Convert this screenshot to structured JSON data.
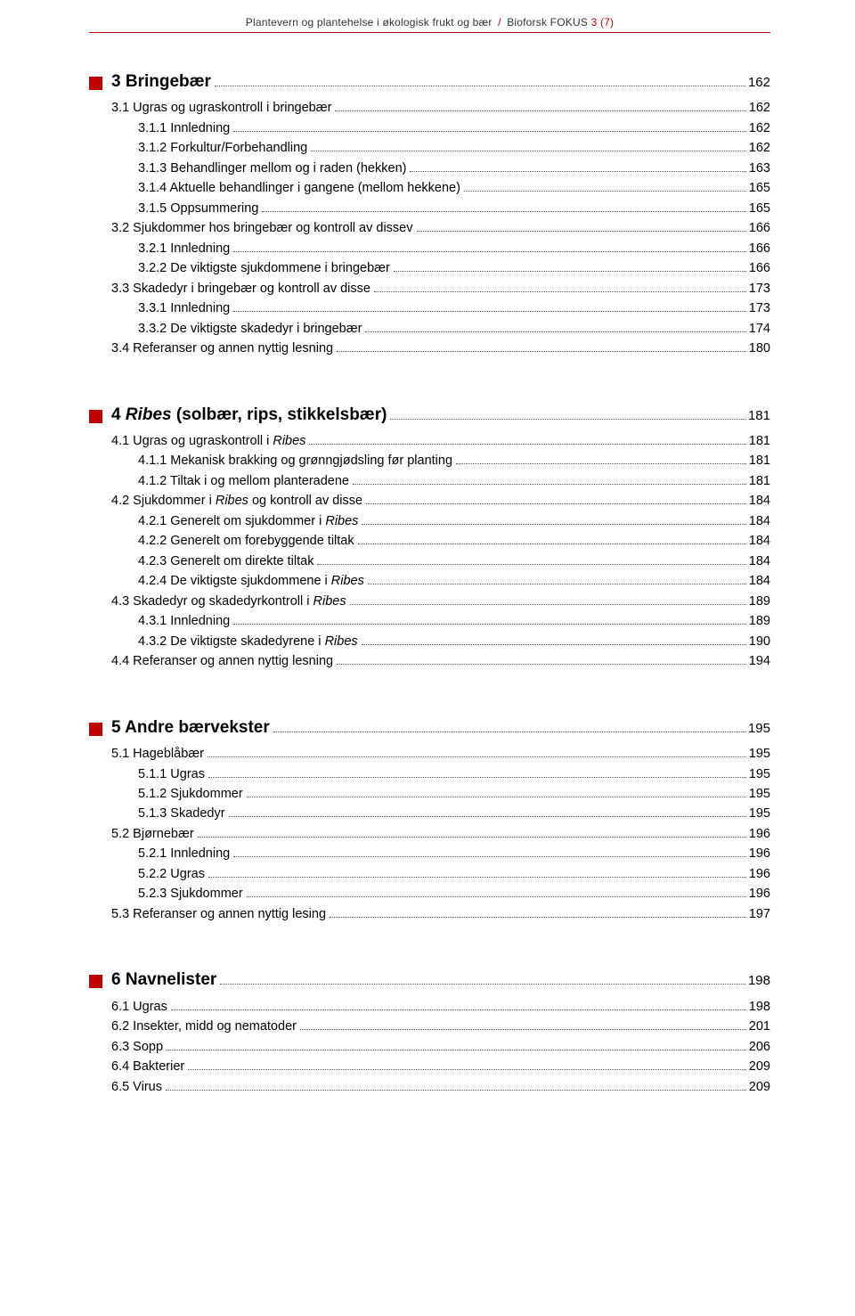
{
  "header": {
    "left": "Plantevern og plantehelse i økologisk frukt og bær",
    "right_prefix": "Bioforsk FOKUS ",
    "issue": "3 (7)"
  },
  "sections": [
    {
      "title_parts": [
        {
          "text": "3 Bringebær"
        }
      ],
      "page": "162",
      "entries": [
        {
          "level": 0,
          "parts": [
            {
              "text": "3.1 Ugras og ugraskontroll i bringebær"
            }
          ],
          "page": "162"
        },
        {
          "level": 1,
          "parts": [
            {
              "text": "3.1.1 Innledning"
            }
          ],
          "page": "162"
        },
        {
          "level": 1,
          "parts": [
            {
              "text": "3.1.2 Forkultur/Forbehandling"
            }
          ],
          "page": "162"
        },
        {
          "level": 1,
          "parts": [
            {
              "text": "3.1.3 Behandlinger mellom og i raden (hekken)"
            }
          ],
          "page": "163"
        },
        {
          "level": 1,
          "parts": [
            {
              "text": "3.1.4 Aktuelle behandlinger i gangene (mellom hekkene)"
            }
          ],
          "page": "165"
        },
        {
          "level": 1,
          "parts": [
            {
              "text": "3.1.5 Oppsummering"
            }
          ],
          "page": "165"
        },
        {
          "level": 0,
          "parts": [
            {
              "text": "3.2 Sjukdommer hos bringebær og kontroll av dissev"
            }
          ],
          "page": "166"
        },
        {
          "level": 1,
          "parts": [
            {
              "text": "3.2.1 Innledning"
            }
          ],
          "page": "166"
        },
        {
          "level": 1,
          "parts": [
            {
              "text": "3.2.2 De viktigste sjukdommene i bringebær"
            }
          ],
          "page": "166"
        },
        {
          "level": 0,
          "parts": [
            {
              "text": "3.3 Skadedyr i bringebær og kontroll av disse"
            }
          ],
          "page": "173"
        },
        {
          "level": 1,
          "parts": [
            {
              "text": "3.3.1 Innledning"
            }
          ],
          "page": "173"
        },
        {
          "level": 1,
          "parts": [
            {
              "text": "3.3.2 De viktigste skadedyr i bringebær"
            }
          ],
          "page": "174"
        },
        {
          "level": 0,
          "parts": [
            {
              "text": "3.4 Referanser og annen nyttig lesning"
            }
          ],
          "page": "180"
        }
      ]
    },
    {
      "title_parts": [
        {
          "text": "4 "
        },
        {
          "text": "Ribes",
          "italic": true
        },
        {
          "text": " (solbær, rips, stikkelsbær)"
        }
      ],
      "page": "181",
      "entries": [
        {
          "level": 0,
          "parts": [
            {
              "text": "4.1 Ugras og ugraskontroll i "
            },
            {
              "text": "Ribes",
              "italic": true
            }
          ],
          "page": "181"
        },
        {
          "level": 1,
          "parts": [
            {
              "text": "4.1.1 Mekanisk brakking og grønngjødsling før planting"
            }
          ],
          "page": "181"
        },
        {
          "level": 1,
          "parts": [
            {
              "text": "4.1.2 Tiltak i og mellom planteradene "
            }
          ],
          "page": "181"
        },
        {
          "level": 0,
          "parts": [
            {
              "text": "4.2 Sjukdommer i "
            },
            {
              "text": "Ribes",
              "italic": true
            },
            {
              "text": " og kontroll av disse"
            }
          ],
          "page": "184"
        },
        {
          "level": 1,
          "parts": [
            {
              "text": "4.2.1 Generelt om sjukdommer i "
            },
            {
              "text": "Ribes",
              "italic": true
            }
          ],
          "page": "184"
        },
        {
          "level": 1,
          "parts": [
            {
              "text": "4.2.2 Generelt om forebyggende tiltak"
            }
          ],
          "page": "184"
        },
        {
          "level": 1,
          "parts": [
            {
              "text": "4.2.3 Generelt om direkte tiltak"
            }
          ],
          "page": "184"
        },
        {
          "level": 1,
          "parts": [
            {
              "text": "4.2.4 De viktigste sjukdommene i "
            },
            {
              "text": "Ribes",
              "italic": true
            }
          ],
          "page": "184"
        },
        {
          "level": 0,
          "parts": [
            {
              "text": "4.3 Skadedyr og skadedyrkontroll i "
            },
            {
              "text": "Ribes",
              "italic": true
            }
          ],
          "page": "189"
        },
        {
          "level": 1,
          "parts": [
            {
              "text": "4.3.1 Innledning"
            }
          ],
          "page": "189"
        },
        {
          "level": 1,
          "parts": [
            {
              "text": "4.3.2 De viktigste skadedyrene i "
            },
            {
              "text": "Ribes",
              "italic": true
            }
          ],
          "page": "190"
        },
        {
          "level": 0,
          "parts": [
            {
              "text": "4.4 Referanser og annen nyttig lesning"
            }
          ],
          "page": "194"
        }
      ]
    },
    {
      "title_parts": [
        {
          "text": "5 Andre bærvekster"
        }
      ],
      "page": "195",
      "entries": [
        {
          "level": 0,
          "parts": [
            {
              "text": "5.1 Hageblåbær"
            }
          ],
          "page": "195"
        },
        {
          "level": 1,
          "parts": [
            {
              "text": "5.1.1 Ugras"
            }
          ],
          "page": "195"
        },
        {
          "level": 1,
          "parts": [
            {
              "text": "5.1.2 Sjukdommer"
            }
          ],
          "page": "195"
        },
        {
          "level": 1,
          "parts": [
            {
              "text": "5.1.3 Skadedyr"
            }
          ],
          "page": "195"
        },
        {
          "level": 0,
          "parts": [
            {
              "text": "5.2 Bjørnebær"
            }
          ],
          "page": "196"
        },
        {
          "level": 1,
          "parts": [
            {
              "text": "5.2.1 Innledning"
            }
          ],
          "page": "196"
        },
        {
          "level": 1,
          "parts": [
            {
              "text": "5.2.2 Ugras"
            }
          ],
          "page": "196"
        },
        {
          "level": 1,
          "parts": [
            {
              "text": "5.2.3 Sjukdommer"
            }
          ],
          "page": "196"
        },
        {
          "level": 0,
          "parts": [
            {
              "text": "5.3 Referanser og annen nyttig lesing"
            }
          ],
          "page": "197"
        }
      ]
    },
    {
      "title_parts": [
        {
          "text": "6 Navnelister"
        }
      ],
      "page": "198",
      "entries": [
        {
          "level": 0,
          "parts": [
            {
              "text": "6.1 Ugras"
            }
          ],
          "page": "198"
        },
        {
          "level": 0,
          "parts": [
            {
              "text": "6.2 Insekter, midd og nematoder"
            }
          ],
          "page": "201"
        },
        {
          "level": 0,
          "parts": [
            {
              "text": "6.3 Sopp"
            }
          ],
          "page": "206"
        },
        {
          "level": 0,
          "parts": [
            {
              "text": "6.4 Bakterier"
            }
          ],
          "page": "209"
        },
        {
          "level": 0,
          "parts": [
            {
              "text": "6.5 Virus"
            }
          ],
          "page": "209"
        }
      ]
    }
  ]
}
